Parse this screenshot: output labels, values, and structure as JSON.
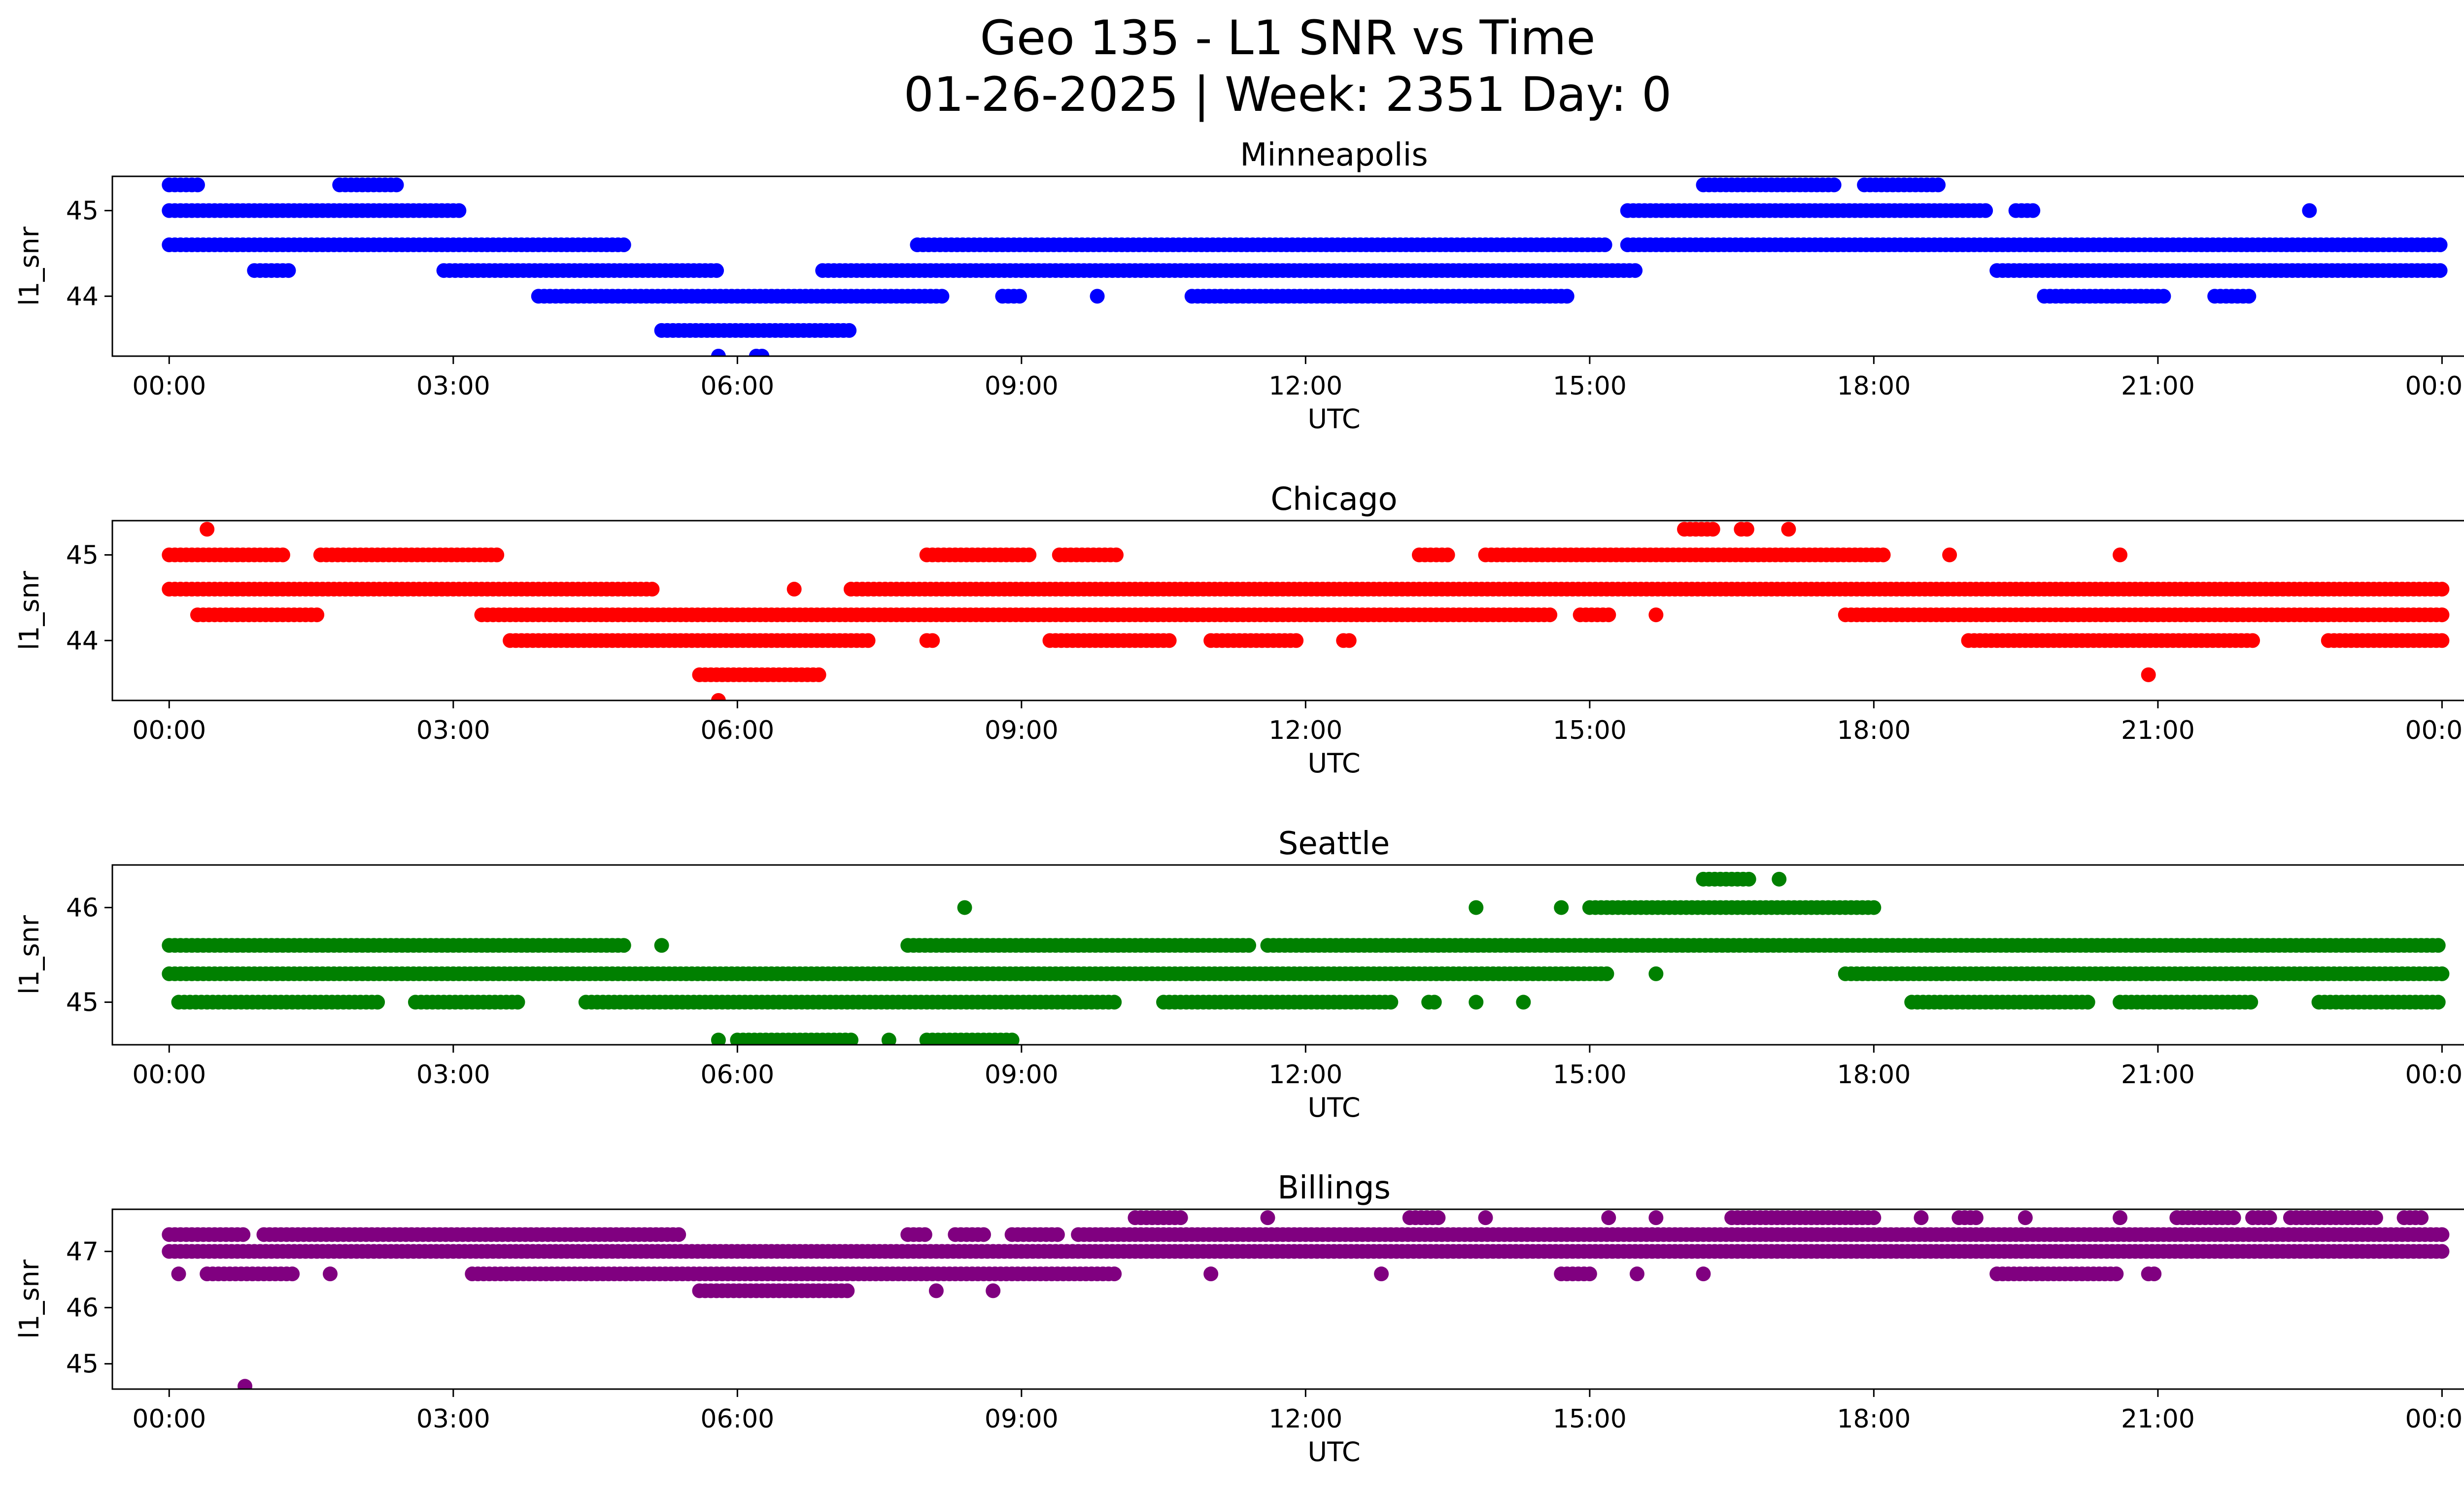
{
  "figure": {
    "title_line1": "Geo 135 - L1 SNR vs Time",
    "title_line2": "01-26-2025 | Week: 2351 Day: 0"
  },
  "chart_data": [
    {
      "type": "scatter",
      "title": "Minneapolis",
      "xlabel": "UTC",
      "ylabel": "l1_snr",
      "color": "#0000ff",
      "xlim": [
        -0.6,
        25.2
      ],
      "ylim": [
        43.3,
        45.4
      ],
      "xticks": [
        "00:00",
        "03:00",
        "06:00",
        "09:00",
        "12:00",
        "15:00",
        "18:00",
        "21:00",
        "00:00"
      ],
      "yticks": [
        44,
        45
      ],
      "series": [
        {
          "level": 45.3,
          "ranges": [
            [
              0.0,
              0.3
            ],
            [
              1.8,
              2.4
            ],
            [
              16.2,
              17.6
            ],
            [
              17.9,
              18.7
            ]
          ]
        },
        {
          "level": 45.0,
          "ranges": [
            [
              0.0,
              3.1
            ],
            [
              15.4,
              19.2
            ],
            [
              19.5,
              19.7
            ],
            [
              22.6,
              22.6
            ]
          ]
        },
        {
          "level": 44.6,
          "ranges": [
            [
              0.0,
              4.8
            ],
            [
              7.9,
              15.2
            ],
            [
              15.4,
              24.0
            ]
          ]
        },
        {
          "level": 44.3,
          "ranges": [
            [
              0.9,
              1.3
            ],
            [
              2.9,
              5.8
            ],
            [
              6.9,
              15.5
            ],
            [
              19.3,
              24.0
            ]
          ]
        },
        {
          "level": 44.0,
          "ranges": [
            [
              3.9,
              8.2
            ],
            [
              8.8,
              9.0
            ],
            [
              9.8,
              9.8
            ],
            [
              10.8,
              14.8
            ],
            [
              19.8,
              21.1
            ],
            [
              21.6,
              22.0
            ]
          ]
        },
        {
          "level": 43.6,
          "ranges": [
            [
              5.2,
              7.2
            ]
          ]
        },
        {
          "level": 43.3,
          "ranges": [
            [
              5.8,
              5.8
            ],
            [
              6.2,
              6.3
            ]
          ]
        }
      ]
    },
    {
      "type": "scatter",
      "title": "Chicago",
      "xlabel": "UTC",
      "ylabel": "l1_snr",
      "color": "#ff0000",
      "xlim": [
        -0.6,
        25.2
      ],
      "ylim": [
        43.3,
        45.4
      ],
      "xticks": [
        "00:00",
        "03:00",
        "06:00",
        "09:00",
        "12:00",
        "15:00",
        "18:00",
        "21:00",
        "00:00"
      ],
      "yticks": [
        44,
        45
      ],
      "series": [
        {
          "level": 45.3,
          "ranges": [
            [
              0.4,
              0.4
            ],
            [
              16.0,
              16.3
            ],
            [
              16.6,
              16.7
            ],
            [
              17.1,
              17.1
            ]
          ]
        },
        {
          "level": 45.0,
          "ranges": [
            [
              0.0,
              1.2
            ],
            [
              1.6,
              3.5
            ],
            [
              8.0,
              9.1
            ],
            [
              9.4,
              10.0
            ],
            [
              13.2,
              13.5
            ],
            [
              13.9,
              18.1
            ],
            [
              18.8,
              18.8
            ],
            [
              20.6,
              20.6
            ]
          ]
        },
        {
          "level": 44.6,
          "ranges": [
            [
              0.0,
              5.1
            ],
            [
              6.6,
              6.6
            ],
            [
              7.2,
              24.0
            ]
          ]
        },
        {
          "level": 44.3,
          "ranges": [
            [
              0.3,
              1.6
            ],
            [
              3.3,
              14.6
            ],
            [
              14.9,
              15.2
            ],
            [
              15.7,
              15.7
            ],
            [
              17.7,
              24.0
            ]
          ]
        },
        {
          "level": 44.0,
          "ranges": [
            [
              3.6,
              7.4
            ],
            [
              8.0,
              8.1
            ],
            [
              9.3,
              10.6
            ],
            [
              11.0,
              11.9
            ],
            [
              12.4,
              12.5
            ],
            [
              19.0,
              22.0
            ],
            [
              22.8,
              24.0
            ]
          ]
        },
        {
          "level": 43.6,
          "ranges": [
            [
              5.6,
              6.9
            ],
            [
              20.9,
              20.9
            ]
          ]
        },
        {
          "level": 43.3,
          "ranges": [
            [
              5.8,
              5.8
            ]
          ]
        }
      ]
    },
    {
      "type": "scatter",
      "title": "Seattle",
      "xlabel": "UTC",
      "ylabel": "l1_snr",
      "color": "#008000",
      "xlim": [
        -0.6,
        25.2
      ],
      "ylim": [
        44.55,
        46.45
      ],
      "xticks": [
        "00:00",
        "03:00",
        "06:00",
        "09:00",
        "12:00",
        "15:00",
        "18:00",
        "21:00",
        "00:00"
      ],
      "yticks": [
        45,
        46
      ],
      "series": [
        {
          "level": 46.3,
          "ranges": [
            [
              16.2,
              16.7
            ],
            [
              17.0,
              17.0
            ]
          ]
        },
        {
          "level": 46.0,
          "ranges": [
            [
              8.4,
              8.4
            ],
            [
              13.8,
              13.8
            ],
            [
              14.7,
              14.7
            ],
            [
              15.0,
              18.0
            ]
          ]
        },
        {
          "level": 45.6,
          "ranges": [
            [
              0.0,
              4.8
            ],
            [
              5.2,
              5.2
            ],
            [
              7.8,
              11.4
            ],
            [
              11.6,
              24.0
            ]
          ]
        },
        {
          "level": 45.3,
          "ranges": [
            [
              0.0,
              15.2
            ],
            [
              15.7,
              15.7
            ],
            [
              17.7,
              24.0
            ]
          ]
        },
        {
          "level": 45.0,
          "ranges": [
            [
              0.1,
              2.2
            ],
            [
              2.6,
              3.7
            ],
            [
              4.4,
              10.0
            ],
            [
              10.5,
              12.9
            ],
            [
              13.3,
              13.4
            ],
            [
              13.8,
              13.8
            ],
            [
              14.3,
              14.3
            ],
            [
              18.4,
              20.3
            ],
            [
              20.6,
              22.0
            ],
            [
              22.7,
              24.0
            ]
          ]
        },
        {
          "level": 44.6,
          "ranges": [
            [
              5.8,
              5.8
            ],
            [
              6.0,
              7.2
            ],
            [
              7.6,
              7.6
            ],
            [
              8.0,
              8.9
            ]
          ]
        }
      ]
    },
    {
      "type": "scatter",
      "title": "Billings",
      "xlabel": "UTC",
      "ylabel": "l1_snr",
      "color": "#800080",
      "xlim": [
        -0.6,
        25.2
      ],
      "ylim": [
        44.55,
        47.75
      ],
      "xticks": [
        "00:00",
        "03:00",
        "06:00",
        "09:00",
        "12:00",
        "15:00",
        "18:00",
        "21:00",
        "00:00"
      ],
      "yticks": [
        45,
        46,
        47
      ],
      "series": [
        {
          "level": 47.6,
          "ranges": [
            [
              10.2,
              10.7
            ],
            [
              11.6,
              11.6
            ],
            [
              13.1,
              13.4
            ],
            [
              13.9,
              13.9
            ],
            [
              15.2,
              15.2
            ],
            [
              15.7,
              15.7
            ],
            [
              16.5,
              18.0
            ],
            [
              18.5,
              18.5
            ],
            [
              18.9,
              19.1
            ],
            [
              19.6,
              19.6
            ],
            [
              20.6,
              20.6
            ],
            [
              21.2,
              21.8
            ],
            [
              22.0,
              22.2
            ],
            [
              22.4,
              23.3
            ],
            [
              23.6,
              23.8
            ]
          ]
        },
        {
          "level": 47.3,
          "ranges": [
            [
              0.0,
              0.8
            ],
            [
              1.0,
              5.4
            ],
            [
              7.8,
              8.0
            ],
            [
              8.3,
              8.6
            ],
            [
              8.9,
              9.4
            ],
            [
              9.6,
              24.0
            ]
          ]
        },
        {
          "level": 47.0,
          "ranges": [
            [
              0.0,
              24.0
            ]
          ]
        },
        {
          "level": 46.6,
          "ranges": [
            [
              0.1,
              0.1
            ],
            [
              0.4,
              1.3
            ],
            [
              1.7,
              1.7
            ],
            [
              3.2,
              10.0
            ],
            [
              11.0,
              11.0
            ],
            [
              12.8,
              12.8
            ],
            [
              14.7,
              15.0
            ],
            [
              15.5,
              15.5
            ],
            [
              16.2,
              16.2
            ],
            [
              19.3,
              20.6
            ],
            [
              20.9,
              21.0
            ]
          ]
        },
        {
          "level": 46.3,
          "ranges": [
            [
              5.6,
              7.2
            ],
            [
              8.1,
              8.1
            ],
            [
              8.7,
              8.7
            ]
          ]
        },
        {
          "level": 44.6,
          "ranges": [
            [
              0.8,
              0.8
            ]
          ]
        }
      ]
    }
  ]
}
